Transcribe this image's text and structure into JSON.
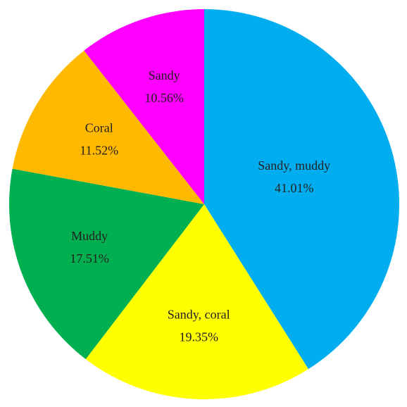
{
  "chart_data": {
    "type": "pie",
    "categories": [
      "Sandy, muddy",
      "Sandy, coral",
      "Muddy",
      "Coral",
      "Sandy"
    ],
    "values": [
      41.01,
      19.35,
      17.51,
      11.52,
      10.56
    ],
    "value_labels": [
      "41.01%",
      "19.35%",
      "17.51%",
      "11.52%",
      "10.56%"
    ],
    "colors": [
      "#00aeef",
      "#ffff00",
      "#00b050",
      "#ffb900",
      "#ff00ff"
    ]
  }
}
